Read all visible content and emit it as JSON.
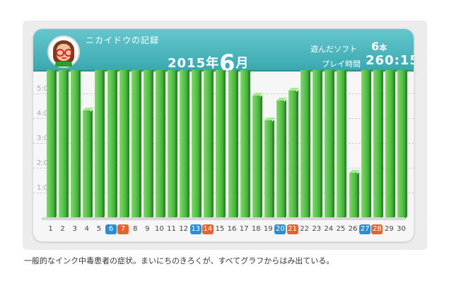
{
  "header": {
    "owner_label": "ニカイドウの記録",
    "year": "2015年",
    "month": "6",
    "month_suffix": "月",
    "games_label": "遊んだソフト",
    "games_value": "6",
    "games_unit": "本",
    "playtime_label": "プレイ時間",
    "playtime_value": "260:15"
  },
  "caption": "一般的なインク中毒患者の症状。まいにちのきろくが、すべてグラフからはみ出ている。",
  "colors": {
    "header": "#3aa8b0",
    "bar": "#56c248",
    "saturday": "#2a8fd0",
    "sunday": "#e8632b"
  },
  "chart_data": {
    "type": "bar",
    "y_ticks": [
      "1:00",
      "2:00",
      "3:00",
      "4:00",
      "5:00"
    ],
    "ylim": [
      0,
      6
    ],
    "categories": [
      "1",
      "2",
      "3",
      "4",
      "5",
      "6",
      "7",
      "8",
      "9",
      "10",
      "11",
      "12",
      "13",
      "14",
      "15",
      "16",
      "17",
      "18",
      "19",
      "20",
      "21",
      "22",
      "23",
      "24",
      "25",
      "26",
      "27",
      "28",
      "29",
      "30"
    ],
    "values": [
      6,
      6,
      6,
      4.3,
      6,
      6,
      6,
      6,
      6,
      6,
      6,
      6,
      6,
      6,
      6,
      6,
      6,
      4.9,
      3.9,
      4.7,
      5.1,
      6,
      6,
      6,
      6,
      1.8,
      6,
      6,
      6,
      6
    ],
    "saturdays": [
      "6",
      "13",
      "20",
      "27"
    ],
    "sundays": [
      "7",
      "14",
      "21",
      "28"
    ]
  }
}
